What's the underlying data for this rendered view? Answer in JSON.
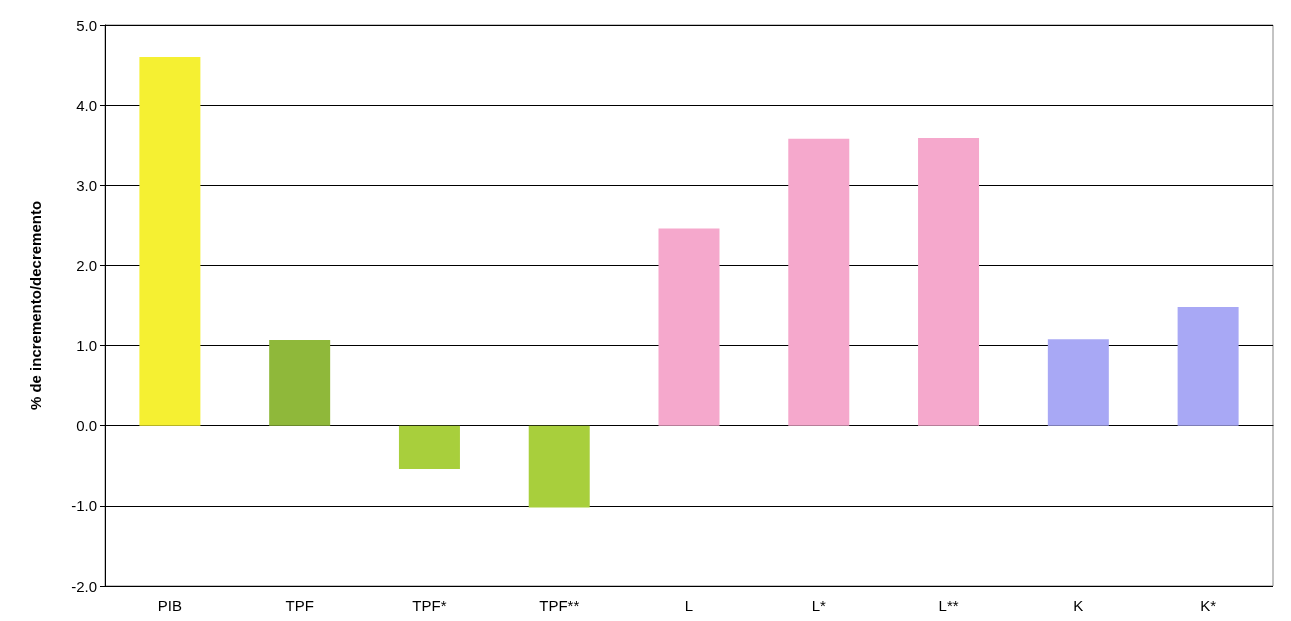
{
  "chart_data": {
    "type": "bar",
    "ylabel": "% de incremento/decremento",
    "categories": [
      "PIB",
      "TPF",
      "TPF*",
      "TPF**",
      "L",
      "L*",
      "L**",
      "K",
      "K*"
    ],
    "values": [
      4.6,
      1.07,
      -0.54,
      -1.02,
      2.46,
      3.58,
      3.59,
      1.08,
      1.48
    ],
    "colors": [
      "#f5f032",
      "#8fb83a",
      "#a8cf3c",
      "#a8cf3c",
      "#f5a8cc",
      "#f5a8cc",
      "#f5a8cc",
      "#a8a8f5",
      "#a8a8f5"
    ],
    "ylim": [
      -2,
      5
    ],
    "yticks": [
      {
        "value": -2,
        "label": "-2.0"
      },
      {
        "value": -1,
        "label": "-1.0"
      },
      {
        "value": 0,
        "label": "0.0"
      },
      {
        "value": 1,
        "label": "1.0"
      },
      {
        "value": 2,
        "label": "2.0"
      },
      {
        "value": 3,
        "label": "3.0"
      },
      {
        "value": 4,
        "label": "4.0"
      },
      {
        "value": 5,
        "label": "5.0"
      }
    ],
    "grid": "y"
  }
}
